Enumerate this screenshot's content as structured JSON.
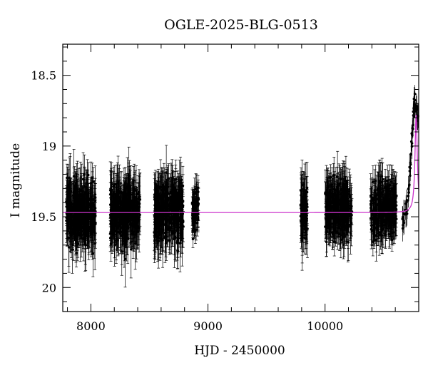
{
  "chart_data": {
    "type": "scatter",
    "title": "OGLE-2025-BLG-0513",
    "xlabel": "HJD - 2450000",
    "ylabel": "I magnitude",
    "xlim": [
      7760,
      10800
    ],
    "ylim": [
      20.17,
      18.28
    ],
    "y_inverted": true,
    "x_ticks": [
      8000,
      9000,
      10000
    ],
    "x_tick_labels": [
      "8000",
      "9000",
      "10000"
    ],
    "y_ticks": [
      18.5,
      19,
      19.5,
      20
    ],
    "y_tick_labels": [
      "18.5",
      "19",
      "19.5",
      "20"
    ],
    "grid": false,
    "legend": "none",
    "series": [
      {
        "kind": "points-with-errorbars",
        "color": "#000000",
        "observing_seasons": [
          {
            "x_start": 7790,
            "x_end": 8040,
            "mean_mag": 19.47,
            "scatter_mag": 0.17,
            "typical_error": 0.17
          },
          {
            "x_start": 8165,
            "x_end": 8420,
            "mean_mag": 19.47,
            "scatter_mag": 0.17,
            "typical_error": 0.17
          },
          {
            "x_start": 8540,
            "x_end": 8790,
            "mean_mag": 19.47,
            "scatter_mag": 0.17,
            "typical_error": 0.17
          },
          {
            "x_start": 8865,
            "x_end": 8920,
            "mean_mag": 19.47,
            "scatter_mag": 0.12,
            "typical_error": 0.1
          },
          {
            "x_start": 9790,
            "x_end": 9850,
            "mean_mag": 19.47,
            "scatter_mag": 0.17,
            "typical_error": 0.18
          },
          {
            "x_start": 10000,
            "x_end": 10230,
            "mean_mag": 19.45,
            "scatter_mag": 0.15,
            "typical_error": 0.15
          },
          {
            "x_start": 10390,
            "x_end": 10610,
            "mean_mag": 19.45,
            "scatter_mag": 0.15,
            "typical_error": 0.14
          }
        ],
        "event_points": [
          [
            10665,
            19.55
          ],
          [
            10675,
            19.52
          ],
          [
            10690,
            19.47
          ],
          [
            10700,
            19.42
          ],
          [
            10712,
            19.35
          ],
          [
            10722,
            19.22
          ],
          [
            10732,
            19.1
          ],
          [
            10740,
            18.98
          ],
          [
            10748,
            18.86
          ],
          [
            10755,
            18.78
          ],
          [
            10762,
            18.72
          ],
          [
            10770,
            18.68
          ],
          [
            10778,
            18.7
          ],
          [
            10786,
            18.75
          ],
          [
            10795,
            18.8
          ]
        ]
      },
      {
        "kind": "model",
        "color": "#cc33cc",
        "baseline_mag": 19.47,
        "peak_x": 10778,
        "peak_mag": 18.78,
        "tE": 12
      }
    ]
  }
}
